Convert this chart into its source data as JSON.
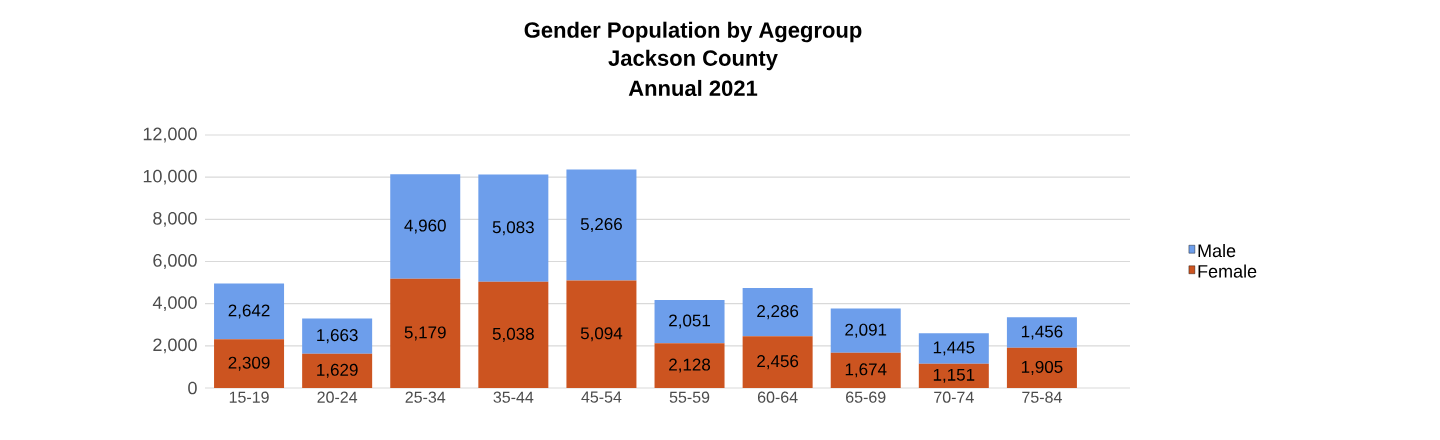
{
  "chart_data": {
    "type": "bar",
    "stacked": true,
    "title": "Gender Population by Agegroup",
    "subtitle": "Jackson County",
    "annotations": [
      "Annual 2021"
    ],
    "categories": [
      "15-19",
      "20-24",
      "25-34",
      "35-44",
      "45-54",
      "55-59",
      "60-64",
      "65-69",
      "70-74",
      "75-84"
    ],
    "series": [
      {
        "name": "Female",
        "color": "#cc5420",
        "values": [
          2309,
          1629,
          5179,
          5038,
          5094,
          2128,
          2456,
          1674,
          1151,
          1905
        ],
        "value_labels": [
          "2,309",
          "1,629",
          "5,179",
          "5,038",
          "5,094",
          "2,128",
          "2,456",
          "1,674",
          "1,151",
          "1,905"
        ]
      },
      {
        "name": "Male",
        "color": "#6d9eeb",
        "values": [
          2642,
          1663,
          4960,
          5083,
          5266,
          2051,
          2286,
          2091,
          1445,
          1456
        ],
        "value_labels": [
          "2,642",
          "1,663",
          "4,960",
          "5,083",
          "5,266",
          "2,051",
          "2,286",
          "2,091",
          "1,445",
          "1,456"
        ]
      }
    ],
    "ylim": [
      0,
      12000
    ],
    "yticks": [
      {
        "value": 0,
        "label": "0"
      },
      {
        "value": 2000,
        "label": "2,000"
      },
      {
        "value": 4000,
        "label": "4,000"
      },
      {
        "value": 6000,
        "label": "6,000"
      },
      {
        "value": 8000,
        "label": "8,000"
      },
      {
        "value": 10000,
        "label": "10,000"
      },
      {
        "value": 12000,
        "label": "12,000"
      }
    ],
    "grid": "y",
    "legend": "right"
  }
}
